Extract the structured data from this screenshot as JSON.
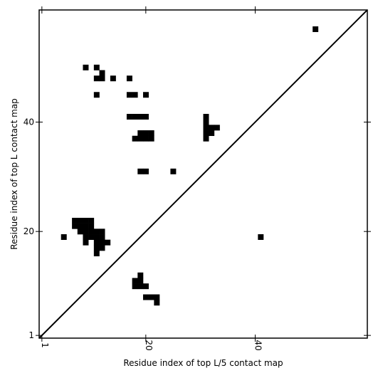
{
  "chart_data": {
    "type": "heatmap",
    "title": "",
    "xlabel": "Residue index of top L/5 contact map",
    "ylabel": "Residue index of top L contact map",
    "xlim": [
      1,
      60
    ],
    "ylim": [
      1,
      60
    ],
    "xticks": [
      {
        "value": 1,
        "label": "1"
      },
      {
        "value": 20,
        "label": "20"
      },
      {
        "value": 40,
        "label": "40"
      }
    ],
    "yticks": [
      {
        "value": 1,
        "label": "1"
      },
      {
        "value": 20,
        "label": "20"
      },
      {
        "value": 40,
        "label": "40"
      }
    ],
    "diagonal": true,
    "cells": [
      [
        51,
        57
      ],
      [
        9,
        50
      ],
      [
        11,
        50
      ],
      [
        12,
        49
      ],
      [
        11,
        48
      ],
      [
        12,
        48
      ],
      [
        14,
        48
      ],
      [
        17,
        48
      ],
      [
        11,
        45
      ],
      [
        17,
        45
      ],
      [
        18,
        45
      ],
      [
        20,
        45
      ],
      [
        17,
        41
      ],
      [
        18,
        41
      ],
      [
        19,
        41
      ],
      [
        20,
        41
      ],
      [
        19,
        38
      ],
      [
        20,
        38
      ],
      [
        21,
        38
      ],
      [
        18,
        37
      ],
      [
        19,
        37
      ],
      [
        20,
        37
      ],
      [
        21,
        37
      ],
      [
        19,
        31
      ],
      [
        20,
        31
      ],
      [
        25,
        31
      ],
      [
        31,
        41
      ],
      [
        31,
        40
      ],
      [
        31,
        39
      ],
      [
        32,
        39
      ],
      [
        33,
        39
      ],
      [
        31,
        38
      ],
      [
        32,
        38
      ],
      [
        31,
        37
      ],
      [
        7,
        22
      ],
      [
        8,
        22
      ],
      [
        9,
        22
      ],
      [
        10,
        22
      ],
      [
        7,
        21
      ],
      [
        8,
        21
      ],
      [
        9,
        21
      ],
      [
        10,
        21
      ],
      [
        8,
        20
      ],
      [
        9,
        20
      ],
      [
        10,
        20
      ],
      [
        11,
        20
      ],
      [
        12,
        20
      ],
      [
        5,
        19
      ],
      [
        9,
        19
      ],
      [
        10,
        19
      ],
      [
        11,
        19
      ],
      [
        12,
        19
      ],
      [
        41,
        19
      ],
      [
        9,
        18
      ],
      [
        11,
        18
      ],
      [
        12,
        18
      ],
      [
        13,
        18
      ],
      [
        11,
        17
      ],
      [
        12,
        17
      ],
      [
        11,
        16
      ],
      [
        19,
        12
      ],
      [
        18,
        11
      ],
      [
        19,
        11
      ],
      [
        18,
        10
      ],
      [
        19,
        10
      ],
      [
        20,
        10
      ],
      [
        20,
        8
      ],
      [
        21,
        8
      ],
      [
        22,
        8
      ],
      [
        22,
        7
      ]
    ]
  }
}
